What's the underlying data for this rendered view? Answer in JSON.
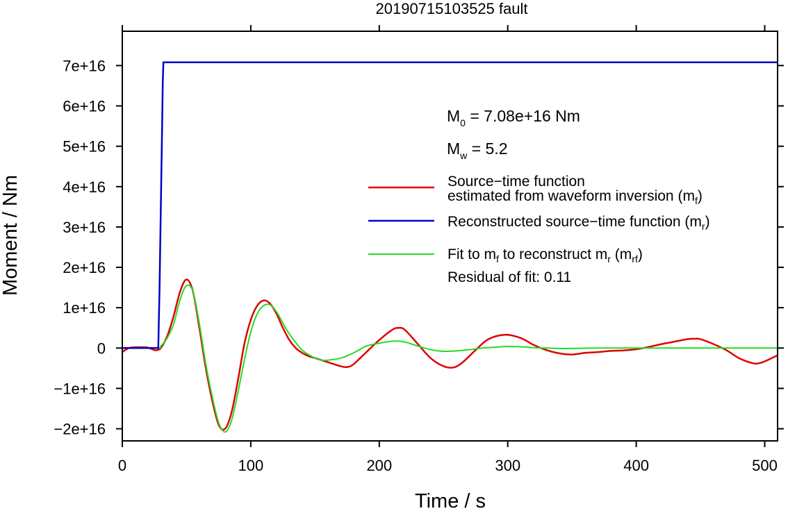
{
  "chart_data": {
    "type": "line",
    "title": "20190715103525 fault",
    "xlabel": "Time / s",
    "ylabel": "Moment / Nm",
    "xlim": [
      0,
      510
    ],
    "ylim": [
      -2.3e+16,
      7.85e+16
    ],
    "x_ticks": [
      0,
      100,
      200,
      300,
      400,
      500
    ],
    "x_tick_labels": [
      "0",
      "100",
      "200",
      "300",
      "400",
      "500"
    ],
    "y_ticks": [
      -2e+16,
      -1e+16,
      0,
      1e+16,
      2e+16,
      3e+16,
      4e+16,
      5e+16,
      6e+16,
      7e+16
    ],
    "y_tick_labels": [
      "−2e+16",
      "−1e+16",
      "0",
      "1e+16",
      "2e+16",
      "3e+16",
      "4e+16",
      "5e+16",
      "6e+16",
      "7e+16"
    ],
    "grid": false,
    "annotations": {
      "m0_sym": "M",
      "m0_sub": "0",
      "m0_value": " = 7.08e+16 Nm",
      "mw_sym": "M",
      "mw_sub": "w",
      "mw_value": " = 5.2",
      "residual": "Residual of fit: 0.11"
    },
    "legend": {
      "placement": "right",
      "items": [
        {
          "key": "red",
          "color": "#e00000",
          "lines": [
            {
              "text": "Source−time function"
            },
            {
              "text": "estimated from waveform inversion (m",
              "sub": "f",
              "tail": ")"
            }
          ]
        },
        {
          "key": "blue",
          "color": "#0000c8",
          "lines": [
            {
              "text": "Reconstructed source−time function (m",
              "sub": "r",
              "tail": ")"
            }
          ]
        },
        {
          "key": "green",
          "color": "#22dd22",
          "lines": [
            {
              "text": "Fit to m",
              "sub": "f",
              "mid": " to reconstruct m",
              "sub2": "r",
              "mid2": " (m",
              "sub3": "rf",
              "tail": ")"
            }
          ]
        }
      ]
    },
    "series": [
      {
        "key": "red",
        "color": "#e00000",
        "x": [
          0,
          5,
          10,
          15,
          20,
          25,
          27,
          30,
          35,
          40,
          45,
          50,
          55,
          60,
          65,
          70,
          75,
          80,
          85,
          90,
          95,
          100,
          105,
          110,
          115,
          120,
          125,
          130,
          135,
          140,
          145,
          150,
          160,
          170,
          175,
          180,
          190,
          200,
          210,
          215,
          220,
          230,
          240,
          250,
          258,
          265,
          275,
          285,
          298,
          310,
          320,
          330,
          340,
          350,
          360,
          370,
          380,
          390,
          400,
          410,
          420,
          430,
          440,
          445,
          450,
          460,
          470,
          480,
          490,
          495,
          500,
          510
        ],
        "y": [
          -1000000000000000.0,
          0,
          200000000000000.0,
          200000000000000.0,
          100000000000000.0,
          -500000000000000.0,
          -500000000000000.0,
          0,
          3000000000000000.0,
          8000000000000000.0,
          1.4e+16,
          1.7e+16,
          1.4e+16,
          5000000000000000.0,
          -5000000000000000.0,
          -1.3e+16,
          -1.9e+16,
          -2e+16,
          -1.6e+16,
          -8000000000000000.0,
          1000000000000000.0,
          7000000000000000.0,
          1.05e+16,
          1.18e+16,
          1.1e+16,
          8500000000000000.0,
          5000000000000000.0,
          2000000000000000.0,
          0,
          -1200000000000000.0,
          -2000000000000000.0,
          -2500000000000000.0,
          -3500000000000000.0,
          -4500000000000000.0,
          -4700000000000000.0,
          -4000000000000000.0,
          -1000000000000000.0,
          2000000000000000.0,
          4500000000000000.0,
          5000000000000000.0,
          4500000000000000.0,
          1000000000000000.0,
          -2500000000000000.0,
          -4500000000000000.0,
          -4800000000000000.0,
          -3500000000000000.0,
          -500000000000000.0,
          2200000000000000.0,
          3300000000000000.0,
          2500000000000000.0,
          800000000000000.0,
          -500000000000000.0,
          -1300000000000000.0,
          -1600000000000000.0,
          -1200000000000000.0,
          -1000000000000000.0,
          -700000000000000.0,
          -600000000000000.0,
          -300000000000000.0,
          300000000000000.0,
          1000000000000000.0,
          1600000000000000.0,
          2200000000000000.0,
          2300000000000000.0,
          2200000000000000.0,
          1000000000000000.0,
          -500000000000000.0,
          -2500000000000000.0,
          -3700000000000000.0,
          -3800000000000000.0,
          -3300000000000000.0,
          -1800000000000000.0
        ]
      },
      {
        "key": "green",
        "color": "#22dd22",
        "x": [
          0,
          27,
          30,
          35,
          40,
          45,
          50,
          55,
          60,
          65,
          70,
          75,
          80,
          85,
          90,
          95,
          100,
          105,
          110,
          115,
          120,
          125,
          130,
          140,
          150,
          155,
          160,
          170,
          180,
          190,
          200,
          210,
          215,
          220,
          230,
          240,
          250,
          260,
          270,
          280,
          290,
          300,
          310,
          320,
          330,
          340,
          350,
          370,
          400,
          430,
          460,
          510
        ],
        "y": [
          0,
          0,
          500000000000000.0,
          2500000000000000.0,
          6000000000000000.0,
          1.2e+16,
          1.55e+16,
          1.4e+16,
          6000000000000000.0,
          -4000000000000000.0,
          -1.2e+16,
          -1.85e+16,
          -2.08e+16,
          -1.8e+16,
          -1.1e+16,
          -3000000000000000.0,
          4000000000000000.0,
          8500000000000000.0,
          1.05e+16,
          1.07e+16,
          9000000000000000.0,
          6200000000000000.0,
          3500000000000000.0,
          -500000000000000.0,
          -2500000000000000.0,
          -3000000000000000.0,
          -3000000000000000.0,
          -2500000000000000.0,
          -1200000000000000.0,
          500000000000000.0,
          1200000000000000.0,
          1700000000000000.0,
          1700000000000000.0,
          1500000000000000.0,
          500000000000000.0,
          -400000000000000.0,
          -800000000000000.0,
          -700000000000000.0,
          -400000000000000.0,
          0,
          200000000000000.0,
          400000000000000.0,
          300000000000000.0,
          100000000000000.0,
          0,
          -100000000000000.0,
          -100000000000000.0,
          0,
          0,
          0,
          0,
          0
        ]
      },
      {
        "key": "blue",
        "color": "#0000c8",
        "x": [
          0,
          28,
          29,
          30,
          31,
          31.5,
          32,
          510
        ],
        "y": [
          0,
          0,
          1.5e+16,
          3.5e+16,
          5.5e+16,
          6.6e+16,
          7.08e+16,
          7.08e+16
        ]
      }
    ]
  }
}
